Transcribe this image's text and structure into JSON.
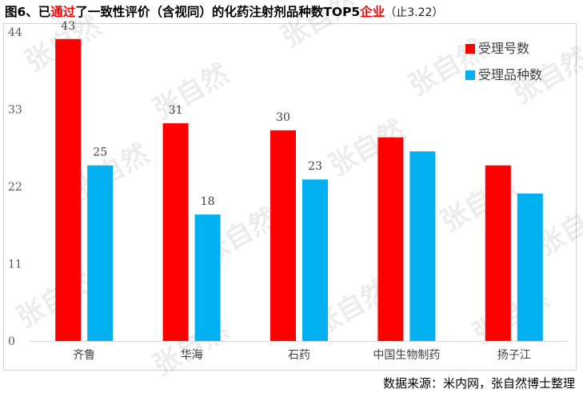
{
  "title": {
    "part1": "图6、已",
    "part2": "通过",
    "part3": "了一致性评价（含视同）的化药注射剂品种数TOP5",
    "part4": "企业",
    "date": "（止3.22）"
  },
  "source": "数据来源：米内网，张自然博士整理",
  "watermark": "张自然",
  "colors": {
    "accepted": "#ff0000",
    "varieties": "#00b0f0"
  },
  "chart_data": {
    "type": "bar",
    "categories": [
      "齐鲁",
      "华海",
      "石药",
      "中国生物制药",
      "扬子江"
    ],
    "series": [
      {
        "name": "受理号数",
        "values": [
          43,
          31,
          30,
          29,
          25
        ],
        "labels": [
          "43",
          "31",
          "30",
          "",
          ""
        ]
      },
      {
        "name": "受理品种数",
        "values": [
          25,
          18,
          23,
          27,
          21
        ],
        "labels": [
          "25",
          "18",
          "23",
          "",
          ""
        ]
      }
    ],
    "ylim": [
      0,
      44
    ],
    "yticks": [
      "0",
      "11",
      "22",
      "33",
      "44"
    ],
    "legend_position": "top-right",
    "grid": false
  }
}
